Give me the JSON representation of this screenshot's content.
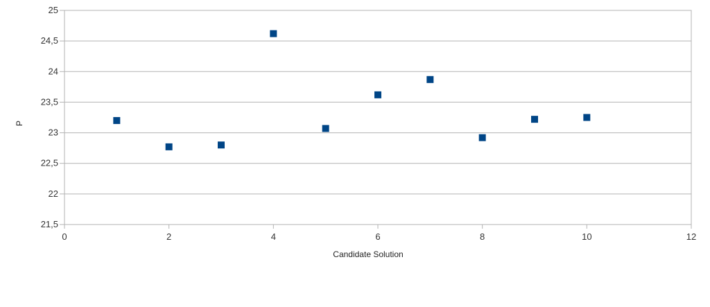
{
  "chart_data": {
    "type": "scatter",
    "title": "",
    "xlabel": "Candidate Solution",
    "ylabel": "P",
    "xlim": [
      0,
      12
    ],
    "ylim": [
      21.5,
      25
    ],
    "x_ticks": [
      "0",
      "2",
      "4",
      "6",
      "8",
      "10",
      "12"
    ],
    "y_ticks": [
      "21,5",
      "22",
      "22,5",
      "23",
      "23,5",
      "24",
      "24,5",
      "25"
    ],
    "grid": "horizontal",
    "legend": "none",
    "marker": "square",
    "series": [
      {
        "color": "#004586",
        "x": [
          1,
          2,
          3,
          4,
          5,
          6,
          7,
          8,
          9,
          10
        ],
        "y": [
          23.2,
          22.77,
          22.8,
          24.62,
          23.07,
          23.62,
          23.87,
          22.92,
          23.22,
          23.25
        ]
      }
    ]
  }
}
